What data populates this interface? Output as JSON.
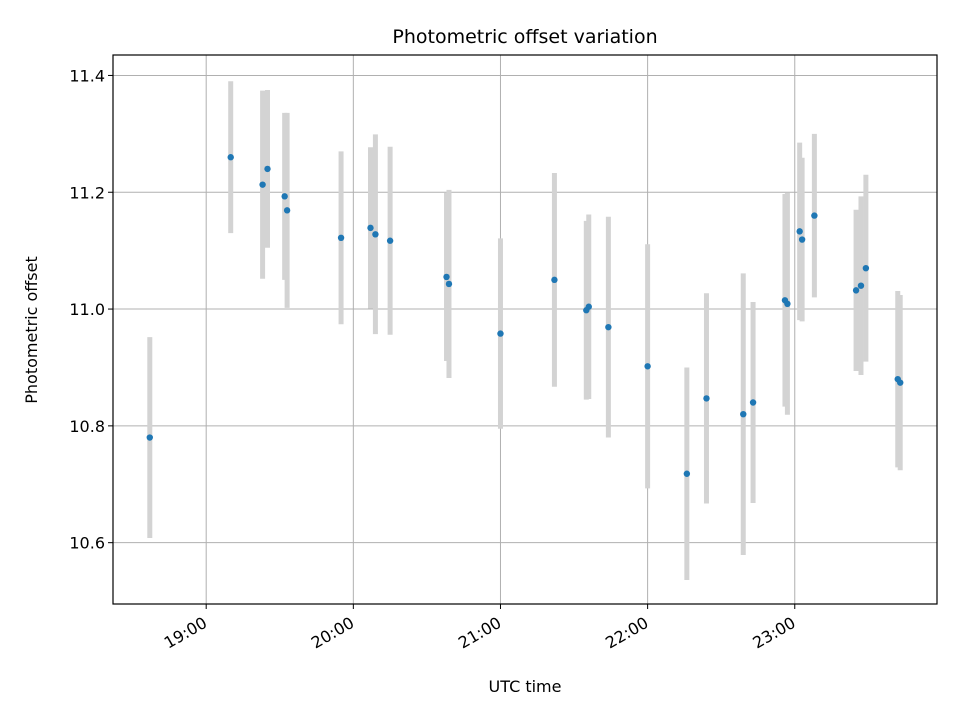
{
  "chart_data": {
    "type": "scatter",
    "title": "Photometric offset variation",
    "xlabel": "UTC time",
    "ylabel": "Photometric offset",
    "xlim": [
      "18:22",
      "23:58"
    ],
    "ylim": [
      10.495,
      11.435
    ],
    "xticks": [
      "19:00",
      "20:00",
      "21:00",
      "22:00",
      "23:00"
    ],
    "yticks": [
      "10.6",
      "10.8",
      "11.0",
      "11.2",
      "11.4"
    ],
    "grid": true,
    "colors": {
      "point": "#1f77b4",
      "errorbar": "#d3d3d3",
      "grid": "#b0b0b0"
    },
    "points": [
      {
        "x": "18:37",
        "y": 10.78,
        "err": 0.172
      },
      {
        "x": "19:10",
        "y": 11.26,
        "err": 0.13
      },
      {
        "x": "19:23",
        "y": 11.213,
        "err": 0.161
      },
      {
        "x": "19:25",
        "y": 11.24,
        "err": 0.135
      },
      {
        "x": "19:32",
        "y": 11.193,
        "err": 0.143
      },
      {
        "x": "19:33",
        "y": 11.169,
        "err": 0.167
      },
      {
        "x": "19:55",
        "y": 11.122,
        "err": 0.148
      },
      {
        "x": "20:07",
        "y": 11.139,
        "err": 0.138
      },
      {
        "x": "20:09",
        "y": 11.128,
        "err": 0.171
      },
      {
        "x": "20:15",
        "y": 11.117,
        "err": 0.161
      },
      {
        "x": "20:38",
        "y": 11.055,
        "err": 0.144
      },
      {
        "x": "20:39",
        "y": 11.043,
        "err": 0.161
      },
      {
        "x": "21:00",
        "y": 10.958,
        "err": 0.163
      },
      {
        "x": "21:22",
        "y": 11.05,
        "err": 0.183
      },
      {
        "x": "21:35",
        "y": 10.998,
        "err": 0.153
      },
      {
        "x": "21:36",
        "y": 11.004,
        "err": 0.158
      },
      {
        "x": "21:44",
        "y": 10.969,
        "err": 0.189
      },
      {
        "x": "22:00",
        "y": 10.902,
        "err": 0.209
      },
      {
        "x": "22:16",
        "y": 10.718,
        "err": 0.182
      },
      {
        "x": "22:24",
        "y": 10.847,
        "err": 0.18
      },
      {
        "x": "22:39",
        "y": 10.82,
        "err": 0.241
      },
      {
        "x": "22:43",
        "y": 10.84,
        "err": 0.172
      },
      {
        "x": "22:56",
        "y": 11.015,
        "err": 0.182
      },
      {
        "x": "22:57",
        "y": 11.009,
        "err": 0.19
      },
      {
        "x": "23:02",
        "y": 11.133,
        "err": 0.152
      },
      {
        "x": "23:03",
        "y": 11.119,
        "err": 0.14
      },
      {
        "x": "23:08",
        "y": 11.16,
        "err": 0.14
      },
      {
        "x": "23:25",
        "y": 11.032,
        "err": 0.138
      },
      {
        "x": "23:27",
        "y": 11.04,
        "err": 0.153
      },
      {
        "x": "23:29",
        "y": 11.07,
        "err": 0.16
      },
      {
        "x": "23:42",
        "y": 10.88,
        "err": 0.151
      },
      {
        "x": "23:43",
        "y": 10.874,
        "err": 0.15
      }
    ]
  }
}
